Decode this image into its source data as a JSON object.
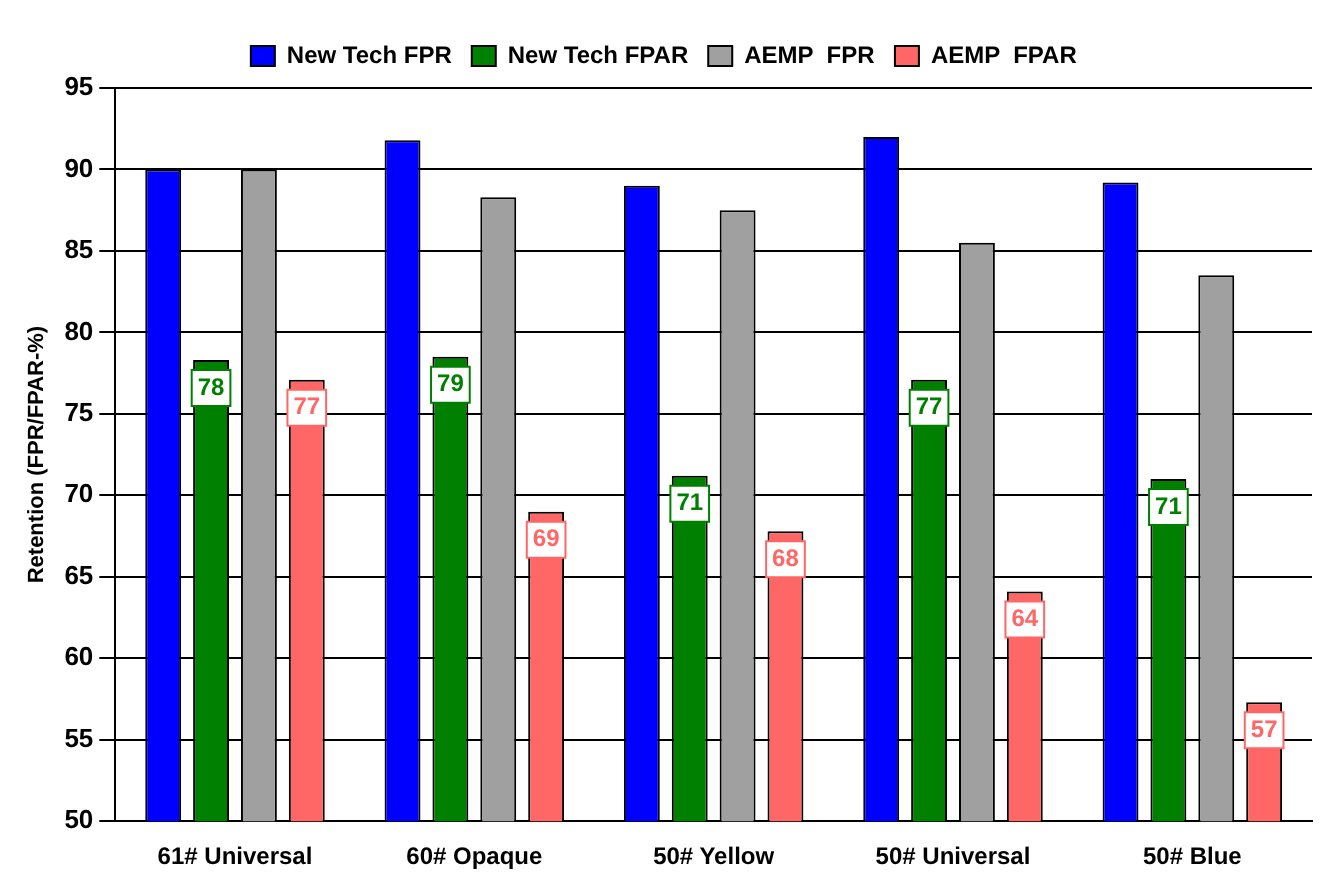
{
  "chart_data": {
    "type": "bar",
    "ylabel": "Retention (FPR/FPAR-%)",
    "categories": [
      "61# Universal",
      "60# Opaque",
      "50# Yellow",
      "50# Universal",
      "50# Blue"
    ],
    "series": [
      {
        "name": "New Tech FPR",
        "color": "#0000ff",
        "values": [
          90,
          91.8,
          89,
          92,
          89.2
        ]
      },
      {
        "name": "New Tech FPAR",
        "color": "#008000",
        "values": [
          78.3,
          78.5,
          71.2,
          77.1,
          71
        ],
        "value_labels": [
          "78",
          "79",
          "71",
          "77",
          "71"
        ]
      },
      {
        "name": "AEMP  FPR",
        "color": "#a0a0a0",
        "values": [
          90,
          88.3,
          87.5,
          85.5,
          83.5
        ]
      },
      {
        "name": "AEMP  FPAR",
        "color": "#ff6666",
        "values": [
          77.1,
          69,
          67.8,
          64.1,
          57.3
        ],
        "value_labels": [
          "77",
          "69",
          "68",
          "64",
          "57"
        ]
      }
    ],
    "ylim": [
      50,
      95
    ],
    "yticks": [
      50,
      55,
      60,
      65,
      70,
      75,
      80,
      85,
      90,
      95
    ],
    "grid": "y",
    "legend": "top"
  }
}
